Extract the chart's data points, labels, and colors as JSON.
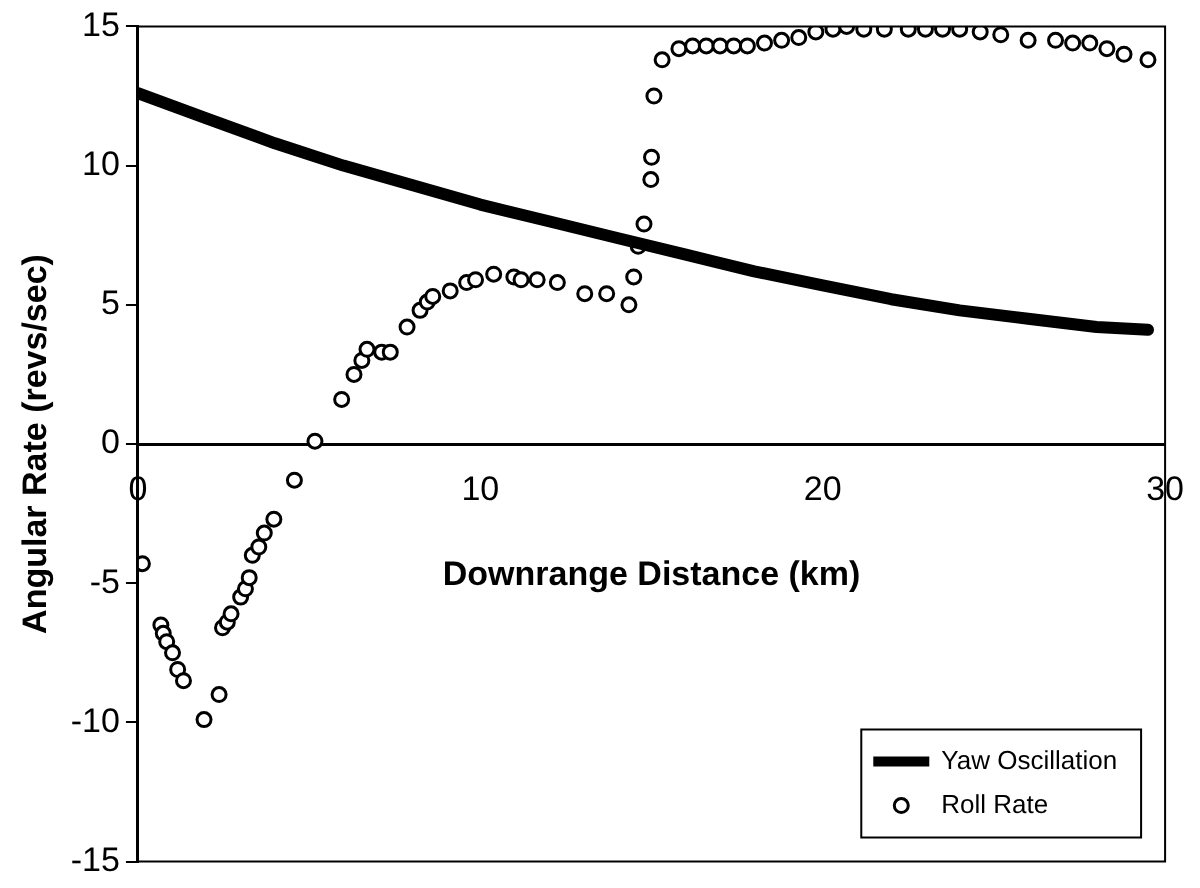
{
  "chart_data": {
    "type": "line",
    "xlabel": "Downrange Distance (km)",
    "ylabel": "Angular Rate (revs/sec)",
    "xlim": [
      0,
      30
    ],
    "xticks": [
      0,
      10,
      20,
      30
    ],
    "ylim": [
      -15,
      15
    ],
    "yticks": [
      -15,
      -10,
      -5,
      0,
      5,
      10,
      15
    ],
    "grid": false,
    "legend": "bottom right",
    "series": [
      {
        "name": "Yaw Oscillation",
        "type": "line",
        "color": "#000000",
        "marker": "none",
        "line_style": "solid",
        "x": [
          0,
          2,
          4,
          6,
          8,
          10,
          12,
          14,
          16,
          18,
          20,
          22,
          24,
          26,
          28,
          29.5
        ],
        "values": [
          12.6,
          11.7,
          10.8,
          10.0,
          9.3,
          8.6,
          8.0,
          7.4,
          6.8,
          6.2,
          5.7,
          5.2,
          4.8,
          4.5,
          4.2,
          4.1
        ]
      },
      {
        "name": "Roll Rate",
        "type": "scatter",
        "color": "#000000",
        "marker": "circle",
        "x": [
          0.13,
          0.67,
          0.74,
          0.84,
          1.01,
          1.16,
          1.33,
          1.93,
          2.37,
          2.47,
          2.61,
          2.72,
          3.0,
          3.14,
          3.25,
          3.34,
          3.53,
          3.69,
          3.97,
          4.57,
          5.17,
          5.95,
          6.31,
          6.54,
          6.69,
          7.12,
          7.37,
          7.86,
          8.24,
          8.45,
          8.61,
          9.12,
          9.6,
          9.86,
          10.39,
          10.98,
          11.19,
          11.66,
          12.25,
          13.05,
          13.69,
          14.34,
          14.48,
          14.61,
          14.78,
          14.98,
          15.0,
          15.07,
          15.31,
          15.8,
          16.2,
          16.6,
          17.0,
          17.4,
          17.8,
          18.3,
          18.8,
          19.3,
          19.8,
          20.3,
          20.7,
          21.2,
          21.8,
          22.5,
          23.0,
          23.5,
          24.0,
          24.6,
          25.2,
          26.0,
          26.8,
          27.3,
          27.8,
          28.3,
          28.8,
          29.5
        ],
        "values": [
          -4.3,
          -6.5,
          -6.8,
          -7.1,
          -7.5,
          -8.1,
          -8.5,
          -9.9,
          -9.0,
          -6.6,
          -6.4,
          -6.1,
          -5.5,
          -5.2,
          -4.8,
          -4.0,
          -3.7,
          -3.2,
          -2.7,
          -1.3,
          0.1,
          1.6,
          2.5,
          3.0,
          3.4,
          3.3,
          3.3,
          4.2,
          4.8,
          5.1,
          5.3,
          5.5,
          5.8,
          5.9,
          6.1,
          6.0,
          5.9,
          5.9,
          5.8,
          5.4,
          5.4,
          5.0,
          6.0,
          7.1,
          7.9,
          9.5,
          10.3,
          12.5,
          13.8,
          14.2,
          14.3,
          14.3,
          14.3,
          14.3,
          14.3,
          14.4,
          14.5,
          14.6,
          14.8,
          14.9,
          15.0,
          14.9,
          14.9,
          14.9,
          14.9,
          14.9,
          14.9,
          14.8,
          14.7,
          14.5,
          14.5,
          14.4,
          14.4,
          14.2,
          14.0,
          13.8
        ]
      }
    ]
  }
}
